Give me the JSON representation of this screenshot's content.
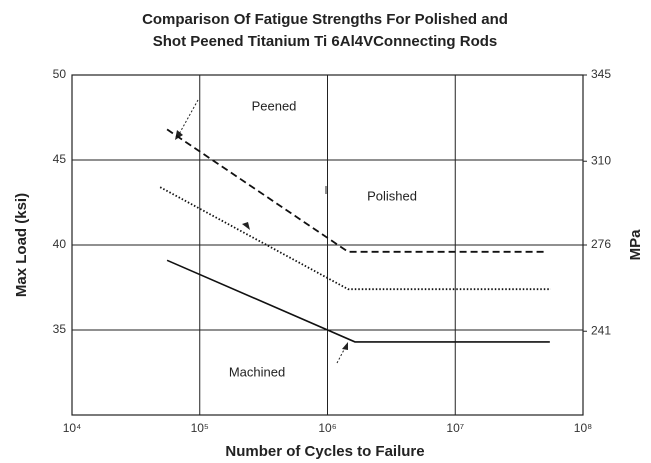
{
  "chart_data": {
    "type": "line",
    "title": [
      "Comparison Of Fatigue Strengths For Polished and",
      "Shot Peened Titanium Ti 6Al4VConnecting Rods"
    ],
    "xlabel": "Number of Cycles to Failure",
    "ylabel": "Max Load (ksi)",
    "y2label": "MPa",
    "xscale": "log",
    "xlim": [
      10000,
      100000000
    ],
    "xticks": [
      {
        "value": 10000,
        "label": "10⁴"
      },
      {
        "value": 100000,
        "label": "10⁵"
      },
      {
        "value": 1000000,
        "label": "10⁶"
      },
      {
        "value": 10000000,
        "label": "10⁷"
      },
      {
        "value": 100000000,
        "label": "10⁸"
      }
    ],
    "ylim": [
      30,
      50
    ],
    "yticks": [
      35,
      40,
      45,
      50
    ],
    "y2lim": [
      207,
      345
    ],
    "y2ticks": [
      241,
      276,
      310,
      345
    ],
    "grid": true,
    "series": [
      {
        "name": "Peened",
        "color": "#111111",
        "dash": "dashed",
        "x": [
          55500,
          1450000,
          51000000
        ],
        "values": [
          46.8,
          39.6,
          39.6
        ]
      },
      {
        "name": "Polished",
        "color": "#111111",
        "dash": "dotted",
        "x": [
          49000,
          1450000,
          56000000
        ],
        "values": [
          43.4,
          37.4,
          37.4
        ]
      },
      {
        "name": "Machined",
        "color": "#111111",
        "dash": "solid",
        "x": [
          55500,
          1640000,
          55000000
        ],
        "values": [
          39.1,
          34.3,
          34.3
        ]
      }
    ]
  }
}
